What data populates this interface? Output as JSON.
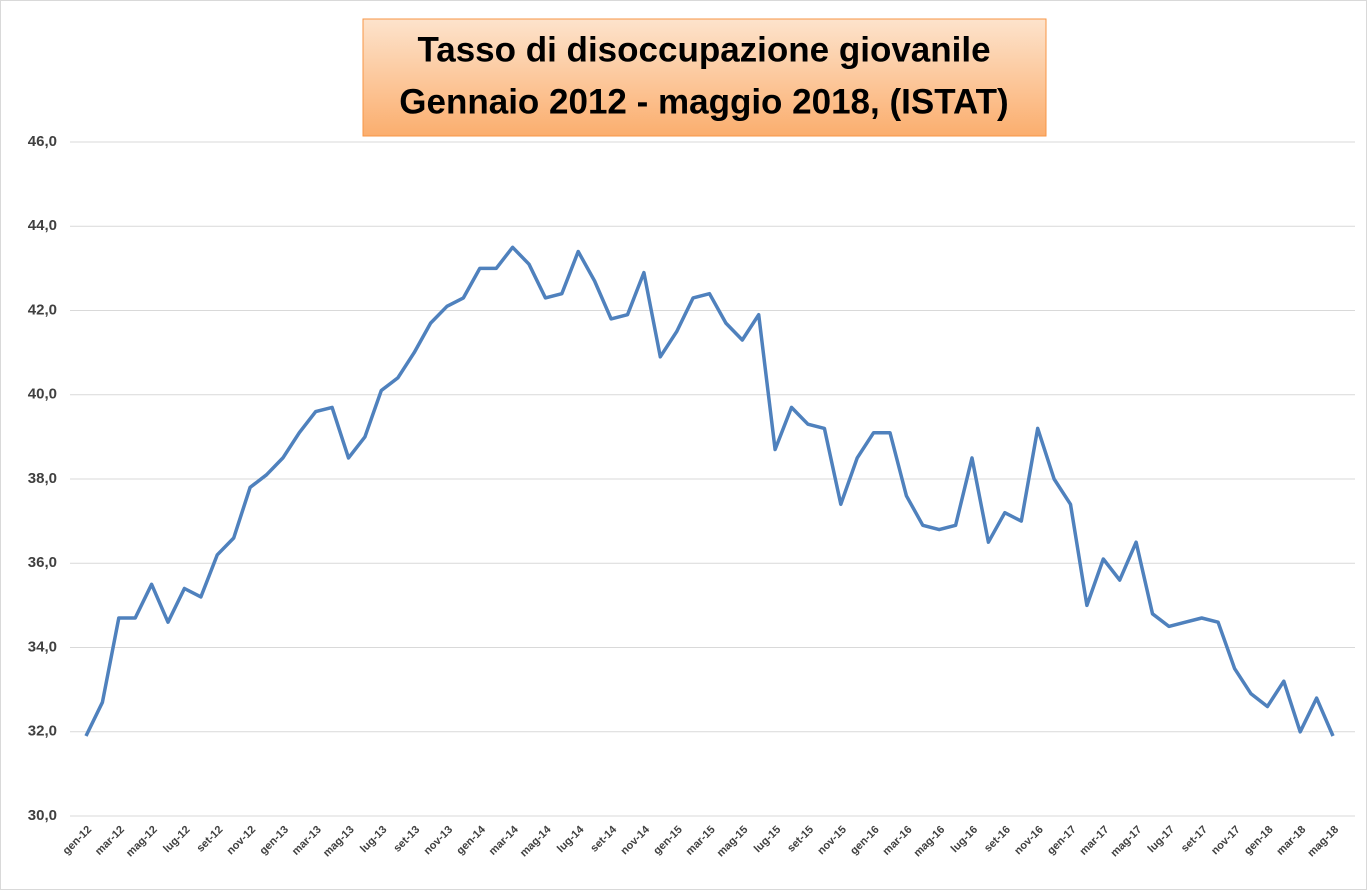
{
  "chart_data": {
    "type": "line",
    "title": "Tasso di disoccupazione giovanile",
    "subtitle": "Gennaio 2012 - maggio 2018, (ISTAT)",
    "categories": [
      "gen-12",
      null,
      "mar-12",
      null,
      "mag-12",
      null,
      "lug-12",
      null,
      "set-12",
      null,
      "nov-12",
      null,
      "gen-13",
      null,
      "mar-13",
      null,
      "mag-13",
      null,
      "lug-13",
      null,
      "set-13",
      null,
      "nov-13",
      null,
      "gen-14",
      null,
      "mar-14",
      null,
      "mag-14",
      null,
      "lug-14",
      null,
      "set-14",
      null,
      "nov-14",
      null,
      "gen-15",
      null,
      "mar-15",
      null,
      "mag-15",
      null,
      "lug-15",
      null,
      "set-15",
      null,
      "nov-15",
      null,
      "gen-16",
      null,
      "mar-16",
      null,
      "mag-16",
      null,
      "lug-16",
      null,
      "set-16",
      null,
      "nov-16",
      null,
      "gen-17",
      null,
      "mar-17",
      null,
      "mag-17",
      null,
      "lug-17",
      null,
      "set-17",
      null,
      "nov-17",
      null,
      "gen-18",
      null,
      "mar-18",
      null,
      "mag-18"
    ],
    "values": [
      31.9,
      32.7,
      34.7,
      34.7,
      35.5,
      34.6,
      35.4,
      35.2,
      36.2,
      36.6,
      37.8,
      38.1,
      38.5,
      39.1,
      39.6,
      39.7,
      38.5,
      39.0,
      40.1,
      40.4,
      41.0,
      41.7,
      42.1,
      42.3,
      43.0,
      43.0,
      43.5,
      43.1,
      42.3,
      42.4,
      43.4,
      42.7,
      41.8,
      41.9,
      42.9,
      40.9,
      41.5,
      42.3,
      42.4,
      41.7,
      41.3,
      41.9,
      38.7,
      39.7,
      39.3,
      39.2,
      37.4,
      38.5,
      39.1,
      39.1,
      37.6,
      36.9,
      36.8,
      36.9,
      38.5,
      36.5,
      37.2,
      37.0,
      39.2,
      38.0,
      37.4,
      35.0,
      36.1,
      35.6,
      36.5,
      34.8,
      34.5,
      34.6,
      34.7,
      34.6,
      33.5,
      32.9,
      32.6,
      33.2,
      32.0,
      32.8,
      31.9
    ],
    "color": "#4f81bd",
    "ylim": [
      30,
      46
    ],
    "yticks": [
      {
        "value": 30,
        "label": "30,0"
      },
      {
        "value": 32,
        "label": "32,0"
      },
      {
        "value": 34,
        "label": "34,0"
      },
      {
        "value": 36,
        "label": "36,0"
      },
      {
        "value": 38,
        "label": "38,0"
      },
      {
        "value": 40,
        "label": "40,0"
      },
      {
        "value": 42,
        "label": "42,0"
      },
      {
        "value": 44,
        "label": "44,0"
      },
      {
        "value": 46,
        "label": "46,0"
      }
    ],
    "grid": true
  }
}
